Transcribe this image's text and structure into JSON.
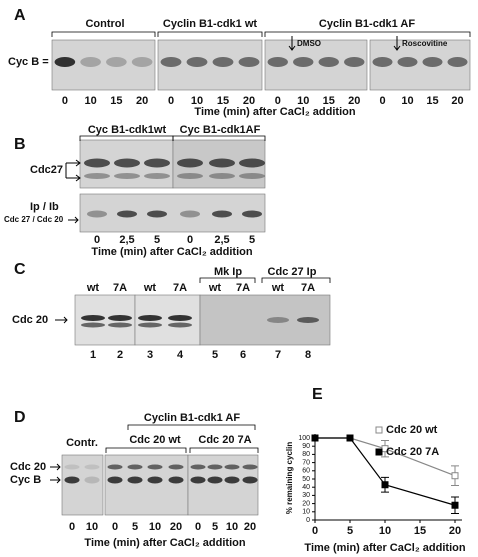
{
  "panel_a": {
    "letter": "A",
    "groups": [
      "Control",
      "Cyclin B1-cdk1 wt",
      "Cyclin B1-cdk1 AF"
    ],
    "treatments": [
      "DMSO",
      "Roscovitine"
    ],
    "row_label": "Cyc B =",
    "lanes": [
      "0",
      "10",
      "15",
      "20",
      "0",
      "10",
      "15",
      "20",
      "0",
      "10",
      "15",
      "20",
      "0",
      "10",
      "15",
      "20"
    ],
    "x_label": "Time (min) after CaCl₂ addition"
  },
  "panel_b": {
    "letter": "B",
    "groups": [
      "Cyc B1-cdk1wt",
      "Cyc B1-cdk1AF"
    ],
    "row_labels": [
      "Cdc27",
      "Ip / Ib",
      "Cdc 27 / Cdc 20"
    ],
    "lanes": [
      "0",
      "2,5",
      "5",
      "0",
      "2,5",
      "5"
    ],
    "x_label": "Time (min) after CaCl₂ addition"
  },
  "panel_c": {
    "letter": "C",
    "groups": [
      "Mk Ip",
      "Cdc 27 Ip"
    ],
    "lane_heads": [
      "wt",
      "7A",
      "wt",
      "7A",
      "wt",
      "7A",
      "wt",
      "7A"
    ],
    "row_label": "Cdc 20",
    "lanes": [
      "1",
      "2",
      "3",
      "4",
      "5",
      "6",
      "7",
      "8"
    ]
  },
  "panel_d": {
    "letter": "D",
    "group": "Cyclin B1-cdk1 AF",
    "subgroups": [
      "Contr.",
      "Cdc 20 wt",
      "Cdc 20 7A"
    ],
    "row_labels": [
      "Cdc 20",
      "Cyc B"
    ],
    "lanes": [
      "0",
      "10",
      "0",
      "5",
      "10",
      "20",
      "0",
      "5",
      "10",
      "20"
    ],
    "x_label": "Time (min) after CaCl₂ addition"
  },
  "panel_e": {
    "letter": "E"
  },
  "chart_data": {
    "type": "line",
    "x_label": "Time (min) after CaCl₂ addition",
    "y_label": "% remaining cyclin",
    "x": [
      0,
      5,
      10,
      20
    ],
    "xlim": [
      0,
      21
    ],
    "xticks": [
      0,
      5,
      10,
      15,
      20
    ],
    "ylim": [
      0,
      100
    ],
    "yticks": [
      0,
      10,
      20,
      30,
      40,
      50,
      60,
      70,
      80,
      90,
      100
    ],
    "series": [
      {
        "name": "Cdc 20 wt",
        "color": "#888888",
        "marker": "open",
        "values": [
          100,
          100,
          87,
          54
        ],
        "errors": [
          0,
          0,
          10,
          12
        ]
      },
      {
        "name": "Cdc 20 7A",
        "color": "#000000",
        "marker": "filled",
        "values": [
          100,
          100,
          43,
          18
        ],
        "errors": [
          0,
          0,
          9,
          10
        ]
      }
    ]
  }
}
